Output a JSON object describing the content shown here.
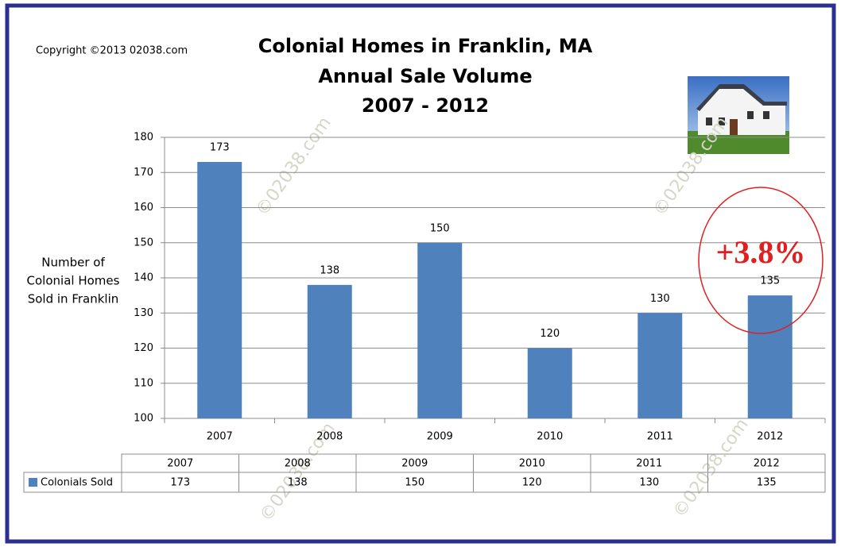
{
  "chart_data": {
    "type": "bar",
    "title": "Colonial Homes in Franklin, MA",
    "subtitle": [
      "Annual Sale Volume",
      "2007 - 2012"
    ],
    "copyright": "Copyright ©2013 02038.com",
    "watermark": "©02038.com",
    "y_label": [
      "Number of",
      "Colonial Homes",
      "Sold in Franklin"
    ],
    "categories": [
      "2007",
      "2008",
      "2009",
      "2010",
      "2011",
      "2012"
    ],
    "series": [
      {
        "name": "Colonials Sold",
        "color": "#4f81bd",
        "values": [
          173,
          138,
          150,
          120,
          130,
          135
        ]
      }
    ],
    "ylim": [
      100,
      180
    ],
    "yticks": [
      100,
      110,
      120,
      130,
      140,
      150,
      160,
      170,
      180
    ],
    "grid": true,
    "annotation": {
      "text": "+3.8%",
      "color": "#e02020"
    }
  }
}
